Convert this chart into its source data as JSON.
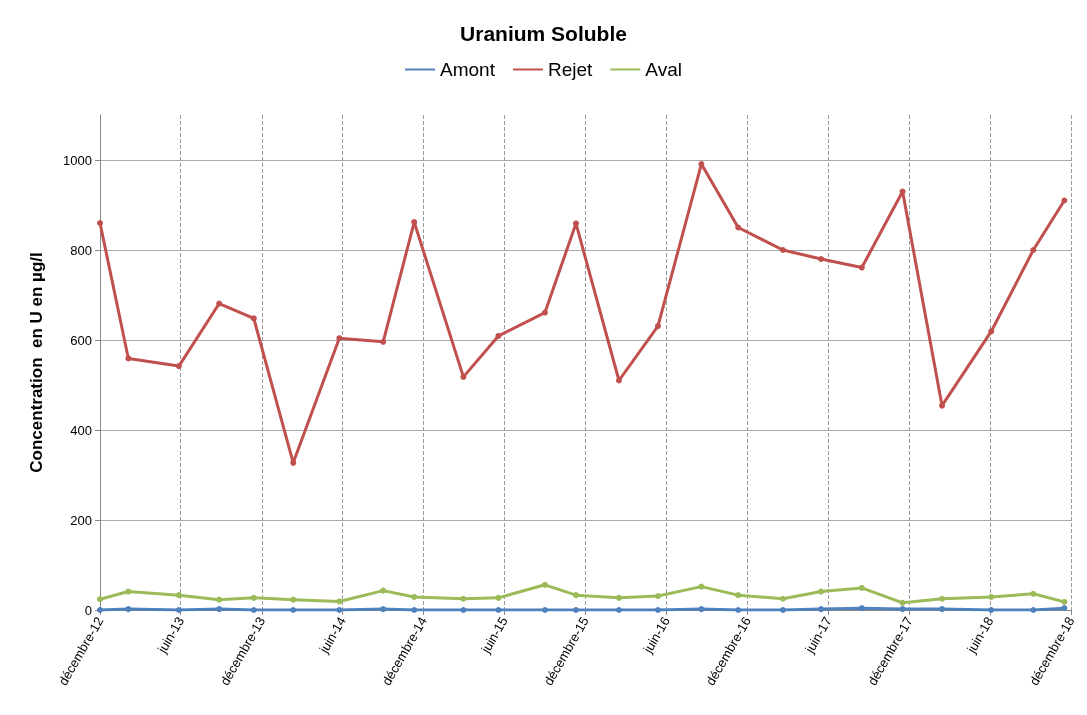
{
  "chart_data": {
    "type": "line",
    "title": "Uranium Soluble",
    "ylabel": "Concentration  en U en µg/l",
    "x": [
      "2012-12-01",
      "2013-02-03",
      "2013-05-28",
      "2013-08-27",
      "2013-11-13",
      "2014-02-10",
      "2014-05-25",
      "2014-09-01",
      "2014-11-10",
      "2015-03-01",
      "2015-05-19",
      "2015-09-01",
      "2015-11-10",
      "2016-02-15",
      "2016-05-13",
      "2016-08-19",
      "2016-11-10",
      "2017-02-19",
      "2017-05-16",
      "2017-08-16",
      "2017-11-16",
      "2018-02-13",
      "2018-06-04",
      "2018-09-07",
      "2018-11-16"
    ],
    "series": [
      {
        "name": "Amont",
        "color": "#4f81bd",
        "values": [
          0,
          2,
          0,
          2,
          0,
          0,
          0,
          2,
          0,
          0,
          0,
          0,
          0,
          0,
          0,
          2,
          0,
          0,
          2,
          4,
          2,
          2,
          0,
          0,
          4
        ]
      },
      {
        "name": "Rejet",
        "color": "#c0504d",
        "values": [
          860,
          559,
          542,
          681,
          648,
          327,
          604,
          596,
          862,
          518,
          609,
          661,
          859,
          510,
          631,
          991,
          850,
          800,
          780,
          761,
          930,
          454,
          619,
          800,
          910
        ]
      },
      {
        "name": "Aval",
        "color": "#9bbb59",
        "values": [
          24,
          41,
          33,
          23,
          27,
          23,
          19,
          43,
          29,
          25,
          27,
          56,
          33,
          27,
          31,
          52,
          33,
          25,
          41,
          49,
          16,
          25,
          29,
          36,
          18
        ]
      }
    ],
    "xlim": [
      "2012-12-01",
      "2018-12-01"
    ],
    "xticks": [
      {
        "value": "2012-12-01",
        "label": "décembre-12"
      },
      {
        "value": "2013-06-01",
        "label": "juin-13"
      },
      {
        "value": "2013-12-01",
        "label": "décembre-13"
      },
      {
        "value": "2014-06-01",
        "label": "juin-14"
      },
      {
        "value": "2014-12-01",
        "label": "décembre-14"
      },
      {
        "value": "2015-06-01",
        "label": "juin-15"
      },
      {
        "value": "2015-12-01",
        "label": "décembre-15"
      },
      {
        "value": "2016-06-01",
        "label": "juin-16"
      },
      {
        "value": "2016-12-01",
        "label": "décembre-16"
      },
      {
        "value": "2017-06-01",
        "label": "juin-17"
      },
      {
        "value": "2017-12-01",
        "label": "décembre-17"
      },
      {
        "value": "2018-06-01",
        "label": "juin-18"
      },
      {
        "value": "2018-12-01",
        "label": "décembre-18"
      }
    ],
    "ylim": [
      0,
      1100
    ],
    "yticks": [
      0,
      200,
      400,
      600,
      800,
      1000
    ],
    "grid": true,
    "legend": "top",
    "marker": "circle",
    "line_style": "solid"
  }
}
